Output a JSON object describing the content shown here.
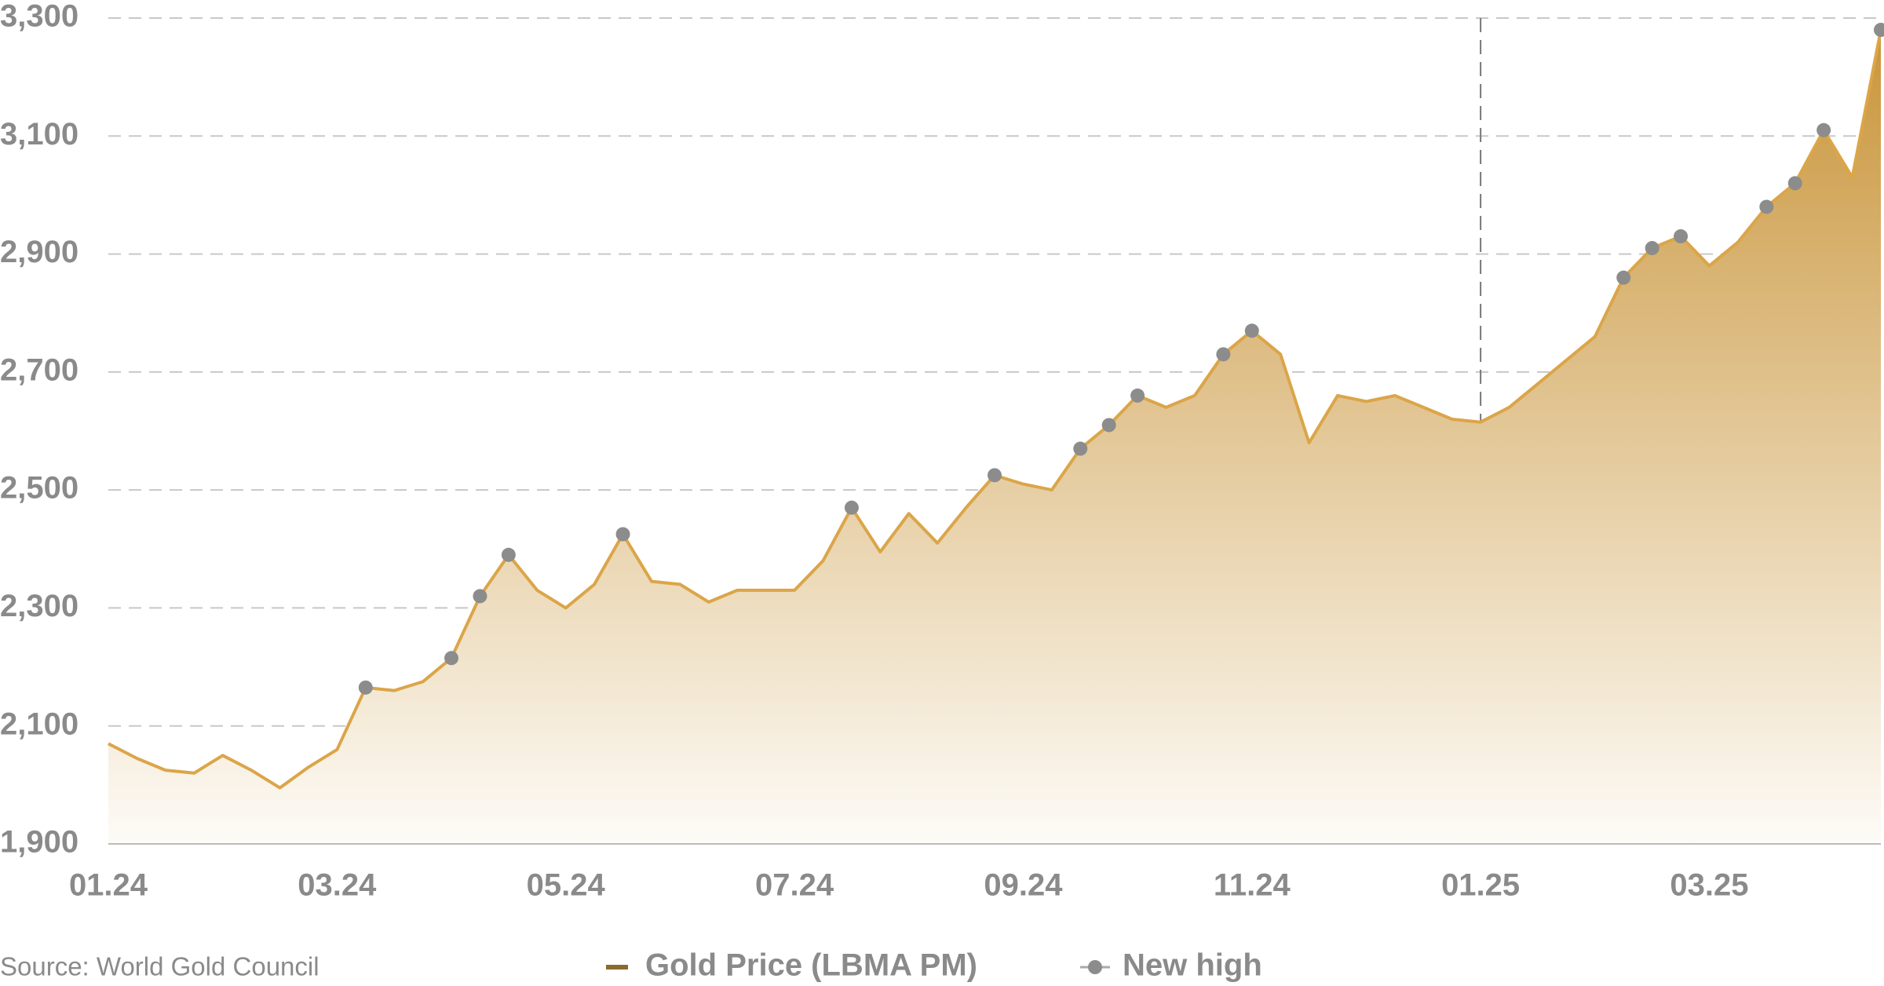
{
  "chart_data": {
    "type": "area-line",
    "source": "Source: World Gold Council",
    "categories": [
      "01.24",
      null,
      null,
      null,
      null,
      null,
      null,
      null,
      "03.24",
      null,
      null,
      null,
      null,
      null,
      null,
      null,
      "05.24",
      null,
      null,
      null,
      null,
      null,
      null,
      null,
      "07.24",
      null,
      null,
      null,
      null,
      null,
      null,
      null,
      "09.24",
      null,
      null,
      null,
      null,
      null,
      null,
      null,
      "11.24",
      null,
      null,
      null,
      null,
      null,
      null,
      null,
      "01.25",
      null,
      null,
      null,
      null,
      null,
      null,
      null,
      "03.25",
      null,
      null,
      null,
      null,
      null,
      null
    ],
    "series": [
      {
        "name": "Gold Price (LBMA PM)",
        "color": "#dba548",
        "values": [
          2070,
          2045,
          2025,
          2020,
          2050,
          2025,
          1995,
          2030,
          2060,
          2165,
          2160,
          2175,
          2215,
          2320,
          2390,
          2330,
          2300,
          2340,
          2425,
          2345,
          2340,
          2310,
          2330,
          2330,
          2330,
          2380,
          2470,
          2395,
          2460,
          2410,
          2470,
          2525,
          2510,
          2500,
          2570,
          2610,
          2660,
          2640,
          2660,
          2730,
          2770,
          2730,
          2580,
          2660,
          2650,
          2660,
          2640,
          2620,
          2615,
          2640,
          2680,
          2720,
          2760,
          2860,
          2910,
          2930,
          2880,
          2920,
          2980,
          3020,
          3110,
          3030,
          3280
        ]
      },
      {
        "name": "New high",
        "color": "#8c8c8c",
        "values": [
          null,
          null,
          null,
          null,
          null,
          null,
          null,
          null,
          null,
          2165,
          null,
          null,
          2215,
          2320,
          2390,
          null,
          null,
          null,
          2425,
          null,
          null,
          null,
          null,
          null,
          null,
          null,
          2470,
          null,
          null,
          null,
          null,
          2525,
          null,
          null,
          2570,
          2610,
          2660,
          null,
          null,
          2730,
          2770,
          null,
          null,
          null,
          null,
          null,
          null,
          null,
          null,
          null,
          null,
          null,
          null,
          2860,
          2910,
          2930,
          null,
          null,
          2980,
          3020,
          3110,
          null,
          3280
        ]
      }
    ],
    "ylim": [
      1900,
      3300
    ],
    "yticks": [
      {
        "value": 1900,
        "label": "1,900"
      },
      {
        "value": 2100,
        "label": "2,100"
      },
      {
        "value": 2300,
        "label": "2,300"
      },
      {
        "value": 2500,
        "label": "2,500"
      },
      {
        "value": 2700,
        "label": "2,700"
      },
      {
        "value": 2900,
        "label": "2,900"
      },
      {
        "value": 3100,
        "label": "3,100"
      },
      {
        "value": 3300,
        "label": "3,300"
      }
    ],
    "grid": true
  }
}
